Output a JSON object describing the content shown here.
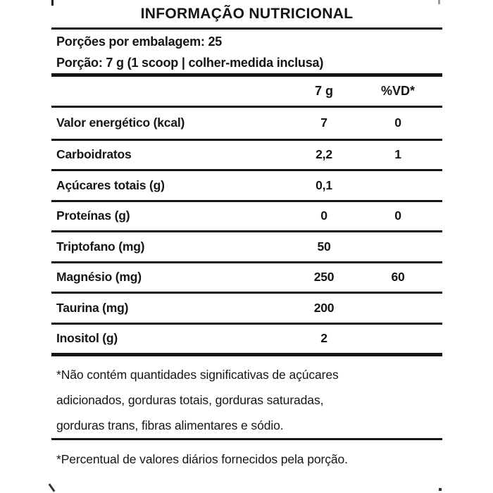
{
  "label": {
    "title": "INFORMAÇÃO NUTRICIONAL",
    "servings_per_package": "Porções por embalagem: 25",
    "serving_size": "Porção: 7 g (1 scoop | colher-medida inclusa)",
    "columns": {
      "amount": "7 g",
      "dv": "%VD*"
    },
    "rows": [
      {
        "name": "Valor energético (kcal)",
        "amount": "7",
        "dv": "0"
      },
      {
        "name": "Carboidratos",
        "amount": "2,2",
        "dv": "1"
      },
      {
        "name": "Açúcares totais (g)",
        "amount": "0,1",
        "dv": ""
      },
      {
        "name": "Proteínas (g)",
        "amount": "0",
        "dv": "0"
      },
      {
        "name": "Triptofano (mg)",
        "amount": "50",
        "dv": ""
      },
      {
        "name": "Magnésio (mg)",
        "amount": "250",
        "dv": "60"
      },
      {
        "name": "Taurina (mg)",
        "amount": "200",
        "dv": ""
      },
      {
        "name": "Inositol (g)",
        "amount": "2",
        "dv": ""
      }
    ],
    "footnote_significant_lines": [
      "*Não contém quantidades significativas de açúcares",
      "adicionados, gorduras totais, gorduras saturadas,",
      "gorduras trans, fibras alimentares e sódio."
    ],
    "footnote_daily_values": "*Percentual de valores diários fornecidos pela porção.",
    "colors": {
      "text": "#151515",
      "rule": "#151515",
      "background": "#ffffff"
    }
  }
}
